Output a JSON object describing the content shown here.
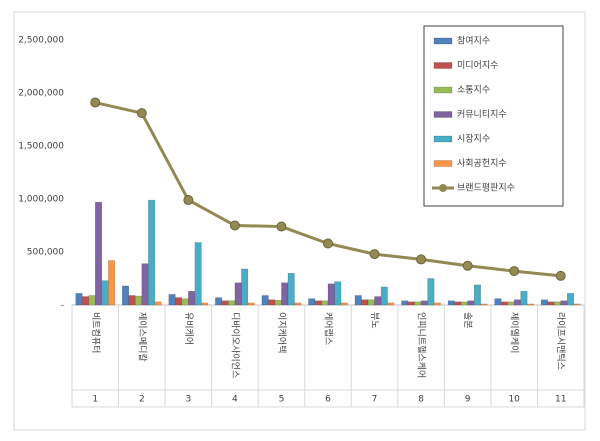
{
  "chart_data": {
    "type": "bar",
    "categories": [
      "비트컴퓨터",
      "제이스메디칼",
      "유비케어",
      "디바이오사이언스",
      "이지케어텍",
      "케어랩스",
      "뷰노",
      "인피니트헬스케어",
      "솔본",
      "제이엘케이",
      "라이프시맨틱스"
    ],
    "ranks": [
      1,
      2,
      3,
      4,
      5,
      6,
      7,
      8,
      9,
      10,
      11
    ],
    "ylim": [
      0,
      2500000
    ],
    "yticks": [
      {
        "value": 0,
        "label": "-"
      },
      {
        "value": 500000,
        "label": "500,000"
      },
      {
        "value": 1000000,
        "label": "1,000,000"
      },
      {
        "value": 1500000,
        "label": "1,500,000"
      },
      {
        "value": 2000000,
        "label": "2,000,000"
      },
      {
        "value": 2500000,
        "label": "2,500,000"
      }
    ],
    "legend": "top-right",
    "series": [
      {
        "name": "참여지수",
        "color": "#4f81bd",
        "values": [
          110000,
          180000,
          100000,
          70000,
          90000,
          60000,
          90000,
          40000,
          40000,
          60000,
          50000
        ]
      },
      {
        "name": "미디어지수",
        "color": "#c0504d",
        "values": [
          80000,
          90000,
          70000,
          40000,
          50000,
          40000,
          50000,
          30000,
          30000,
          30000,
          30000
        ]
      },
      {
        "name": "소통지수",
        "color": "#9bbb59",
        "values": [
          90000,
          85000,
          60000,
          40000,
          45000,
          40000,
          50000,
          30000,
          30000,
          30000,
          30000
        ]
      },
      {
        "name": "커뮤니티지수",
        "color": "#8064a2",
        "values": [
          970000,
          390000,
          130000,
          210000,
          210000,
          200000,
          80000,
          40000,
          40000,
          50000,
          40000
        ]
      },
      {
        "name": "시장지수",
        "color": "#4bacc6",
        "values": [
          230000,
          990000,
          590000,
          340000,
          300000,
          220000,
          170000,
          250000,
          190000,
          130000,
          110000
        ]
      },
      {
        "name": "사회공헌지수",
        "color": "#f79646",
        "values": [
          420000,
          30000,
          20000,
          20000,
          20000,
          20000,
          20000,
          20000,
          10000,
          10000,
          10000
        ]
      },
      {
        "name": "브랜드평판지수",
        "color": "#938953",
        "type": "line",
        "values": [
          1910000,
          1810000,
          990000,
          750000,
          740000,
          580000,
          480000,
          430000,
          370000,
          320000,
          275000
        ]
      }
    ]
  }
}
